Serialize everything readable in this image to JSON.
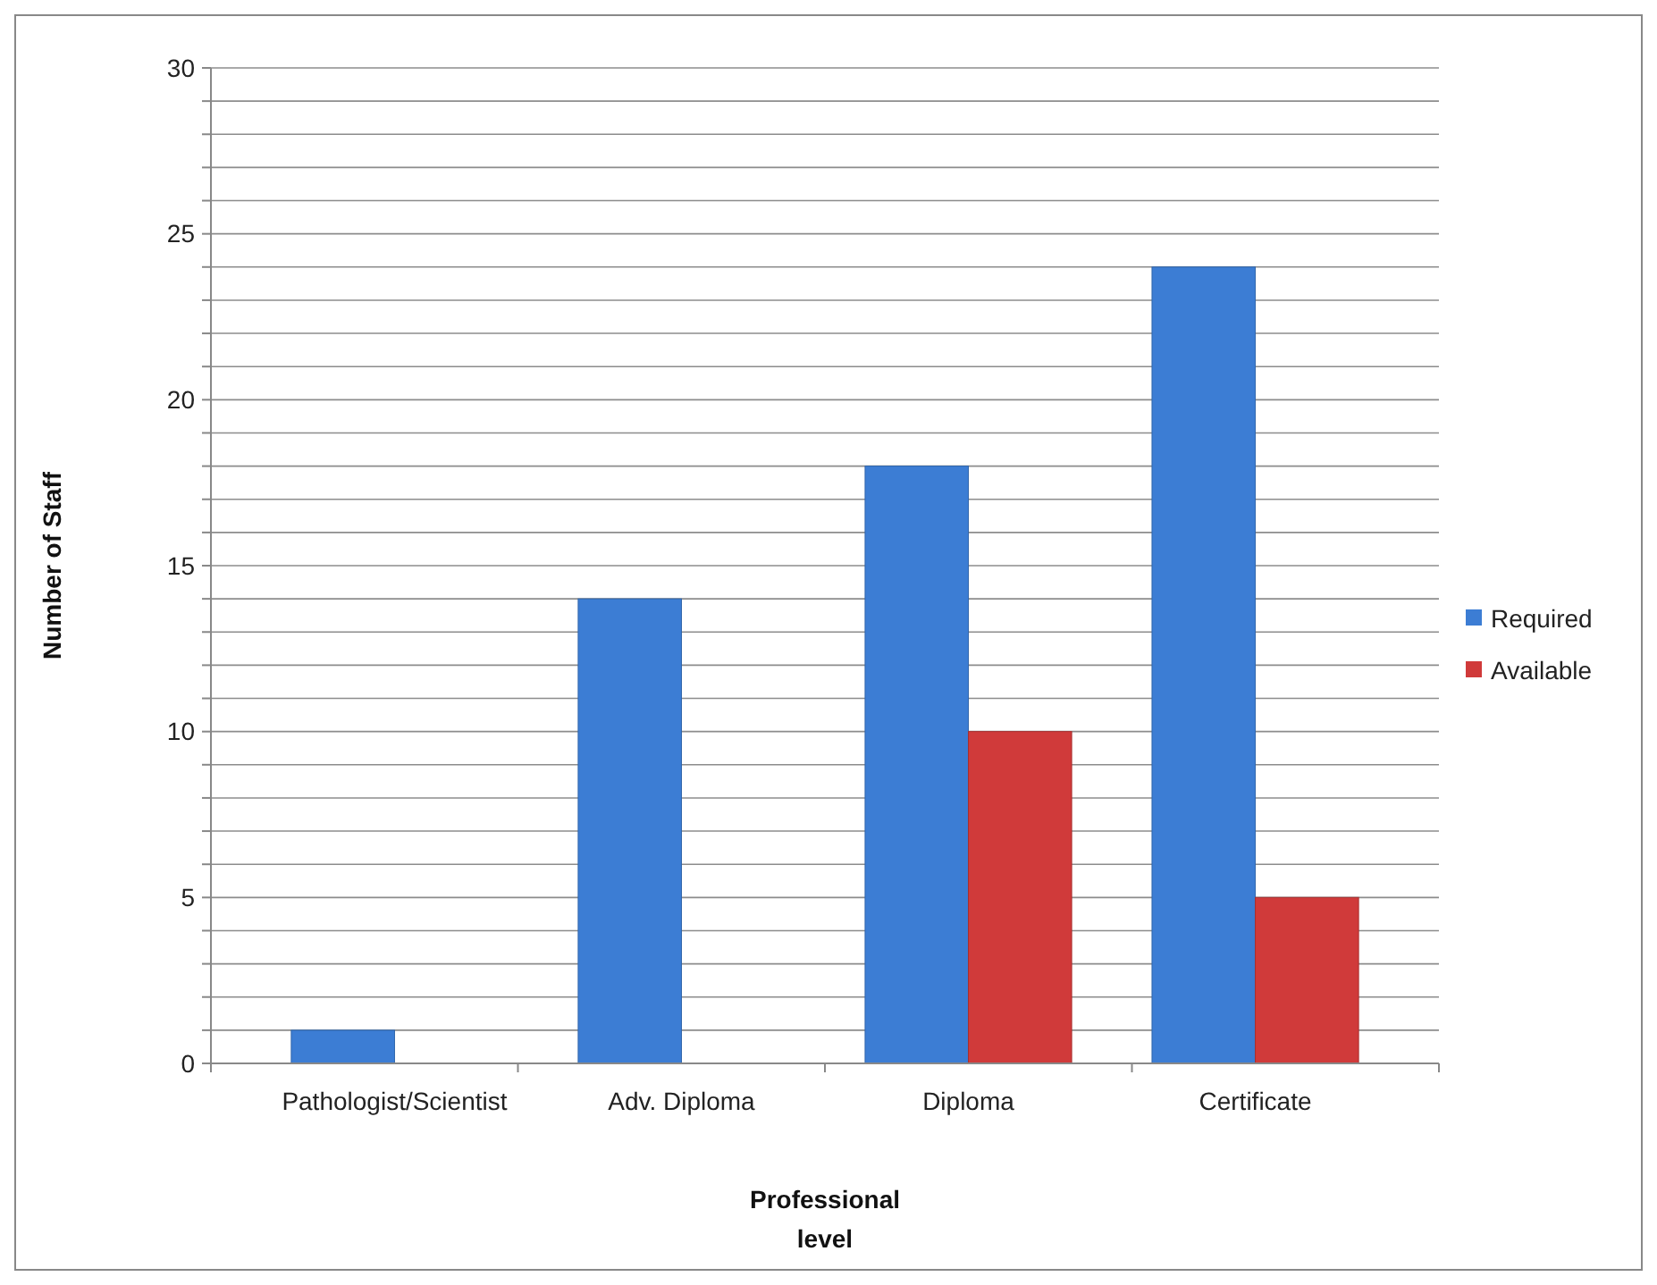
{
  "chart_data": {
    "type": "bar",
    "xlabel": "Professional\nlevel",
    "ylabel": "Number of Staff",
    "categories": [
      "Pathologist/Scientist",
      "Adv. Diploma",
      "Diploma",
      "Certificate"
    ],
    "series": [
      {
        "name": "Required",
        "color": "#3c7dd4",
        "values": [
          1,
          14,
          18,
          24
        ]
      },
      {
        "name": "Available",
        "color": "#d03a3a",
        "values": [
          0,
          0,
          10,
          5
        ]
      }
    ],
    "ylim": [
      0,
      30
    ],
    "yticks": [
      0,
      {
        "value": 1,
        "label": null
      },
      {
        "value": 2,
        "label": null
      },
      {
        "value": 3,
        "label": null
      },
      {
        "value": 4,
        "label": null
      },
      5,
      {
        "value": 6,
        "label": null
      },
      {
        "value": 7,
        "label": null
      },
      {
        "value": 8,
        "label": null
      },
      {
        "value": 9,
        "label": null
      },
      10,
      {
        "value": 11,
        "label": null
      },
      {
        "value": 12,
        "label": null
      },
      {
        "value": 13,
        "label": null
      },
      {
        "value": 14,
        "label": null
      },
      15,
      {
        "value": 16,
        "label": null
      },
      {
        "value": 17,
        "label": null
      },
      {
        "value": 18,
        "label": null
      },
      {
        "value": 19,
        "label": null
      },
      20,
      {
        "value": 21,
        "label": null
      },
      {
        "value": 22,
        "label": null
      },
      {
        "value": 23,
        "label": null
      },
      {
        "value": 24,
        "label": null
      },
      25,
      {
        "value": 26,
        "label": null
      },
      {
        "value": 27,
        "label": null
      },
      {
        "value": 28,
        "label": null
      },
      {
        "value": 29,
        "label": null
      },
      30
    ],
    "grid": "y",
    "legend": "right"
  }
}
